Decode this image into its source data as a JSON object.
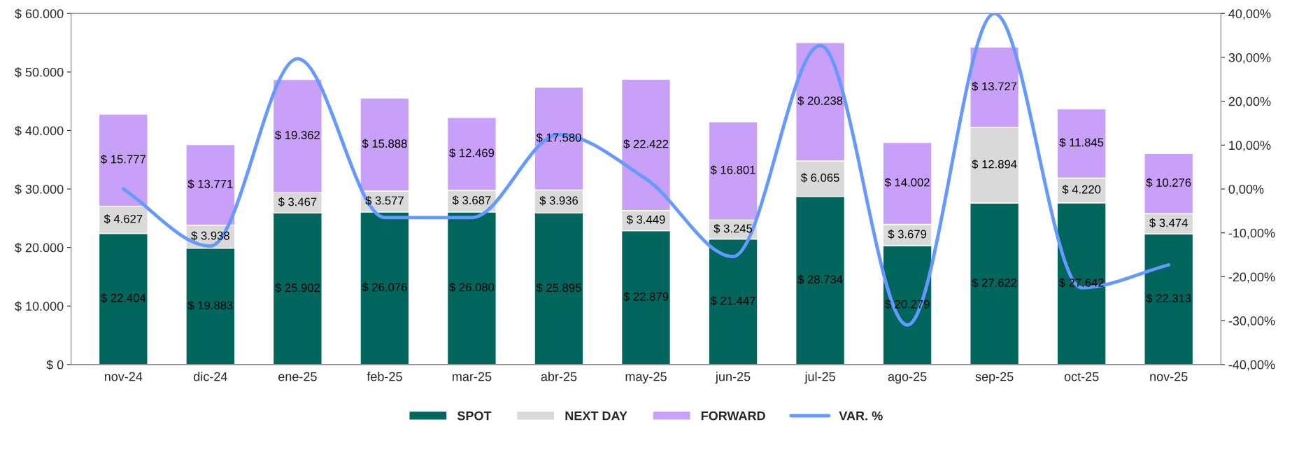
{
  "chart_data": {
    "type": "bar",
    "stacked": true,
    "categories": [
      "nov-24",
      "dic-24",
      "ene-25",
      "feb-25",
      "mar-25",
      "abr-25",
      "may-25",
      "jun-25",
      "jul-25",
      "ago-25",
      "sep-25",
      "oct-25",
      "nov-25"
    ],
    "series": [
      {
        "name": "SPOT",
        "color": "#00665e",
        "values": [
          22404,
          19883,
          25902,
          26076,
          26080,
          25895,
          22879,
          21447,
          28734,
          20279,
          27622,
          27642,
          22313
        ],
        "value_labels": [
          "$ 22.404",
          "$ 19.883",
          "$ 25.902",
          "$ 26.076",
          "$ 26.080",
          "$ 25.895",
          "$ 22.879",
          "$ 21.447",
          "$ 28.734",
          "$ 20.279",
          "$ 27.622",
          "$ 27.642",
          "$ 22.313"
        ]
      },
      {
        "name": "NEXT DAY",
        "color": "#d9d9d9",
        "values": [
          4627,
          3938,
          3467,
          3577,
          3687,
          3936,
          3449,
          3245,
          6065,
          3679,
          12894,
          4220,
          3474
        ],
        "value_labels": [
          "$ 4.627",
          "$ 3.938",
          "$ 3.467",
          "$ 3.577",
          "$ 3.687",
          "$ 3.936",
          "$ 3.449",
          "$ 3.245",
          "$ 6.065",
          "$ 3.679",
          "$ 12.894",
          "$ 4.220",
          "$ 3.474"
        ]
      },
      {
        "name": "FORWARD",
        "color": "#c9a0f8",
        "values": [
          15777,
          13771,
          19362,
          15888,
          12469,
          17580,
          22422,
          16801,
          20238,
          14002,
          13727,
          11845,
          10276
        ],
        "value_labels": [
          "$ 15.777",
          "$ 13.771",
          "$ 19.362",
          "$ 15.888",
          "$ 12.469",
          "$ 17.580",
          "$ 22.422",
          "$ 16.801",
          "$ 20.238",
          "$ 14.002",
          "$ 13.727",
          "$ 11.845",
          "$ 10.276"
        ]
      },
      {
        "name": "VAR. %",
        "type": "line",
        "axis": "y2",
        "color": "#6699ff",
        "values": [
          0,
          -13,
          29.7,
          -6.5,
          -6.5,
          12.4,
          2.3,
          -15.4,
          32.7,
          -31,
          40,
          -22.5,
          -17.3
        ]
      }
    ],
    "ylim": [
      0,
      60000
    ],
    "yticks": [
      {
        "value": 0,
        "label": "$ 0"
      },
      {
        "value": 10000,
        "label": "$ 10.000"
      },
      {
        "value": 20000,
        "label": "$ 20.000"
      },
      {
        "value": 30000,
        "label": "$ 30.000"
      },
      {
        "value": 40000,
        "label": "$ 40.000"
      },
      {
        "value": 50000,
        "label": "$ 50.000"
      },
      {
        "value": 60000,
        "label": "$ 60.000"
      }
    ],
    "y2lim": [
      -40,
      40
    ],
    "y2ticks": [
      {
        "value": -40,
        "label": "-40,00%"
      },
      {
        "value": -30,
        "label": "-30,00%"
      },
      {
        "value": -20,
        "label": "-20,00%"
      },
      {
        "value": -10,
        "label": "-10,00%"
      },
      {
        "value": 0,
        "label": "0,00%"
      },
      {
        "value": 10,
        "label": "10,00%"
      },
      {
        "value": 20,
        "label": "20,00%"
      },
      {
        "value": 30,
        "label": "30,00%"
      },
      {
        "value": 40,
        "label": "40,00%"
      }
    ],
    "legend": "bottom",
    "grid": false,
    "marker": "none",
    "line_style": "solid"
  }
}
